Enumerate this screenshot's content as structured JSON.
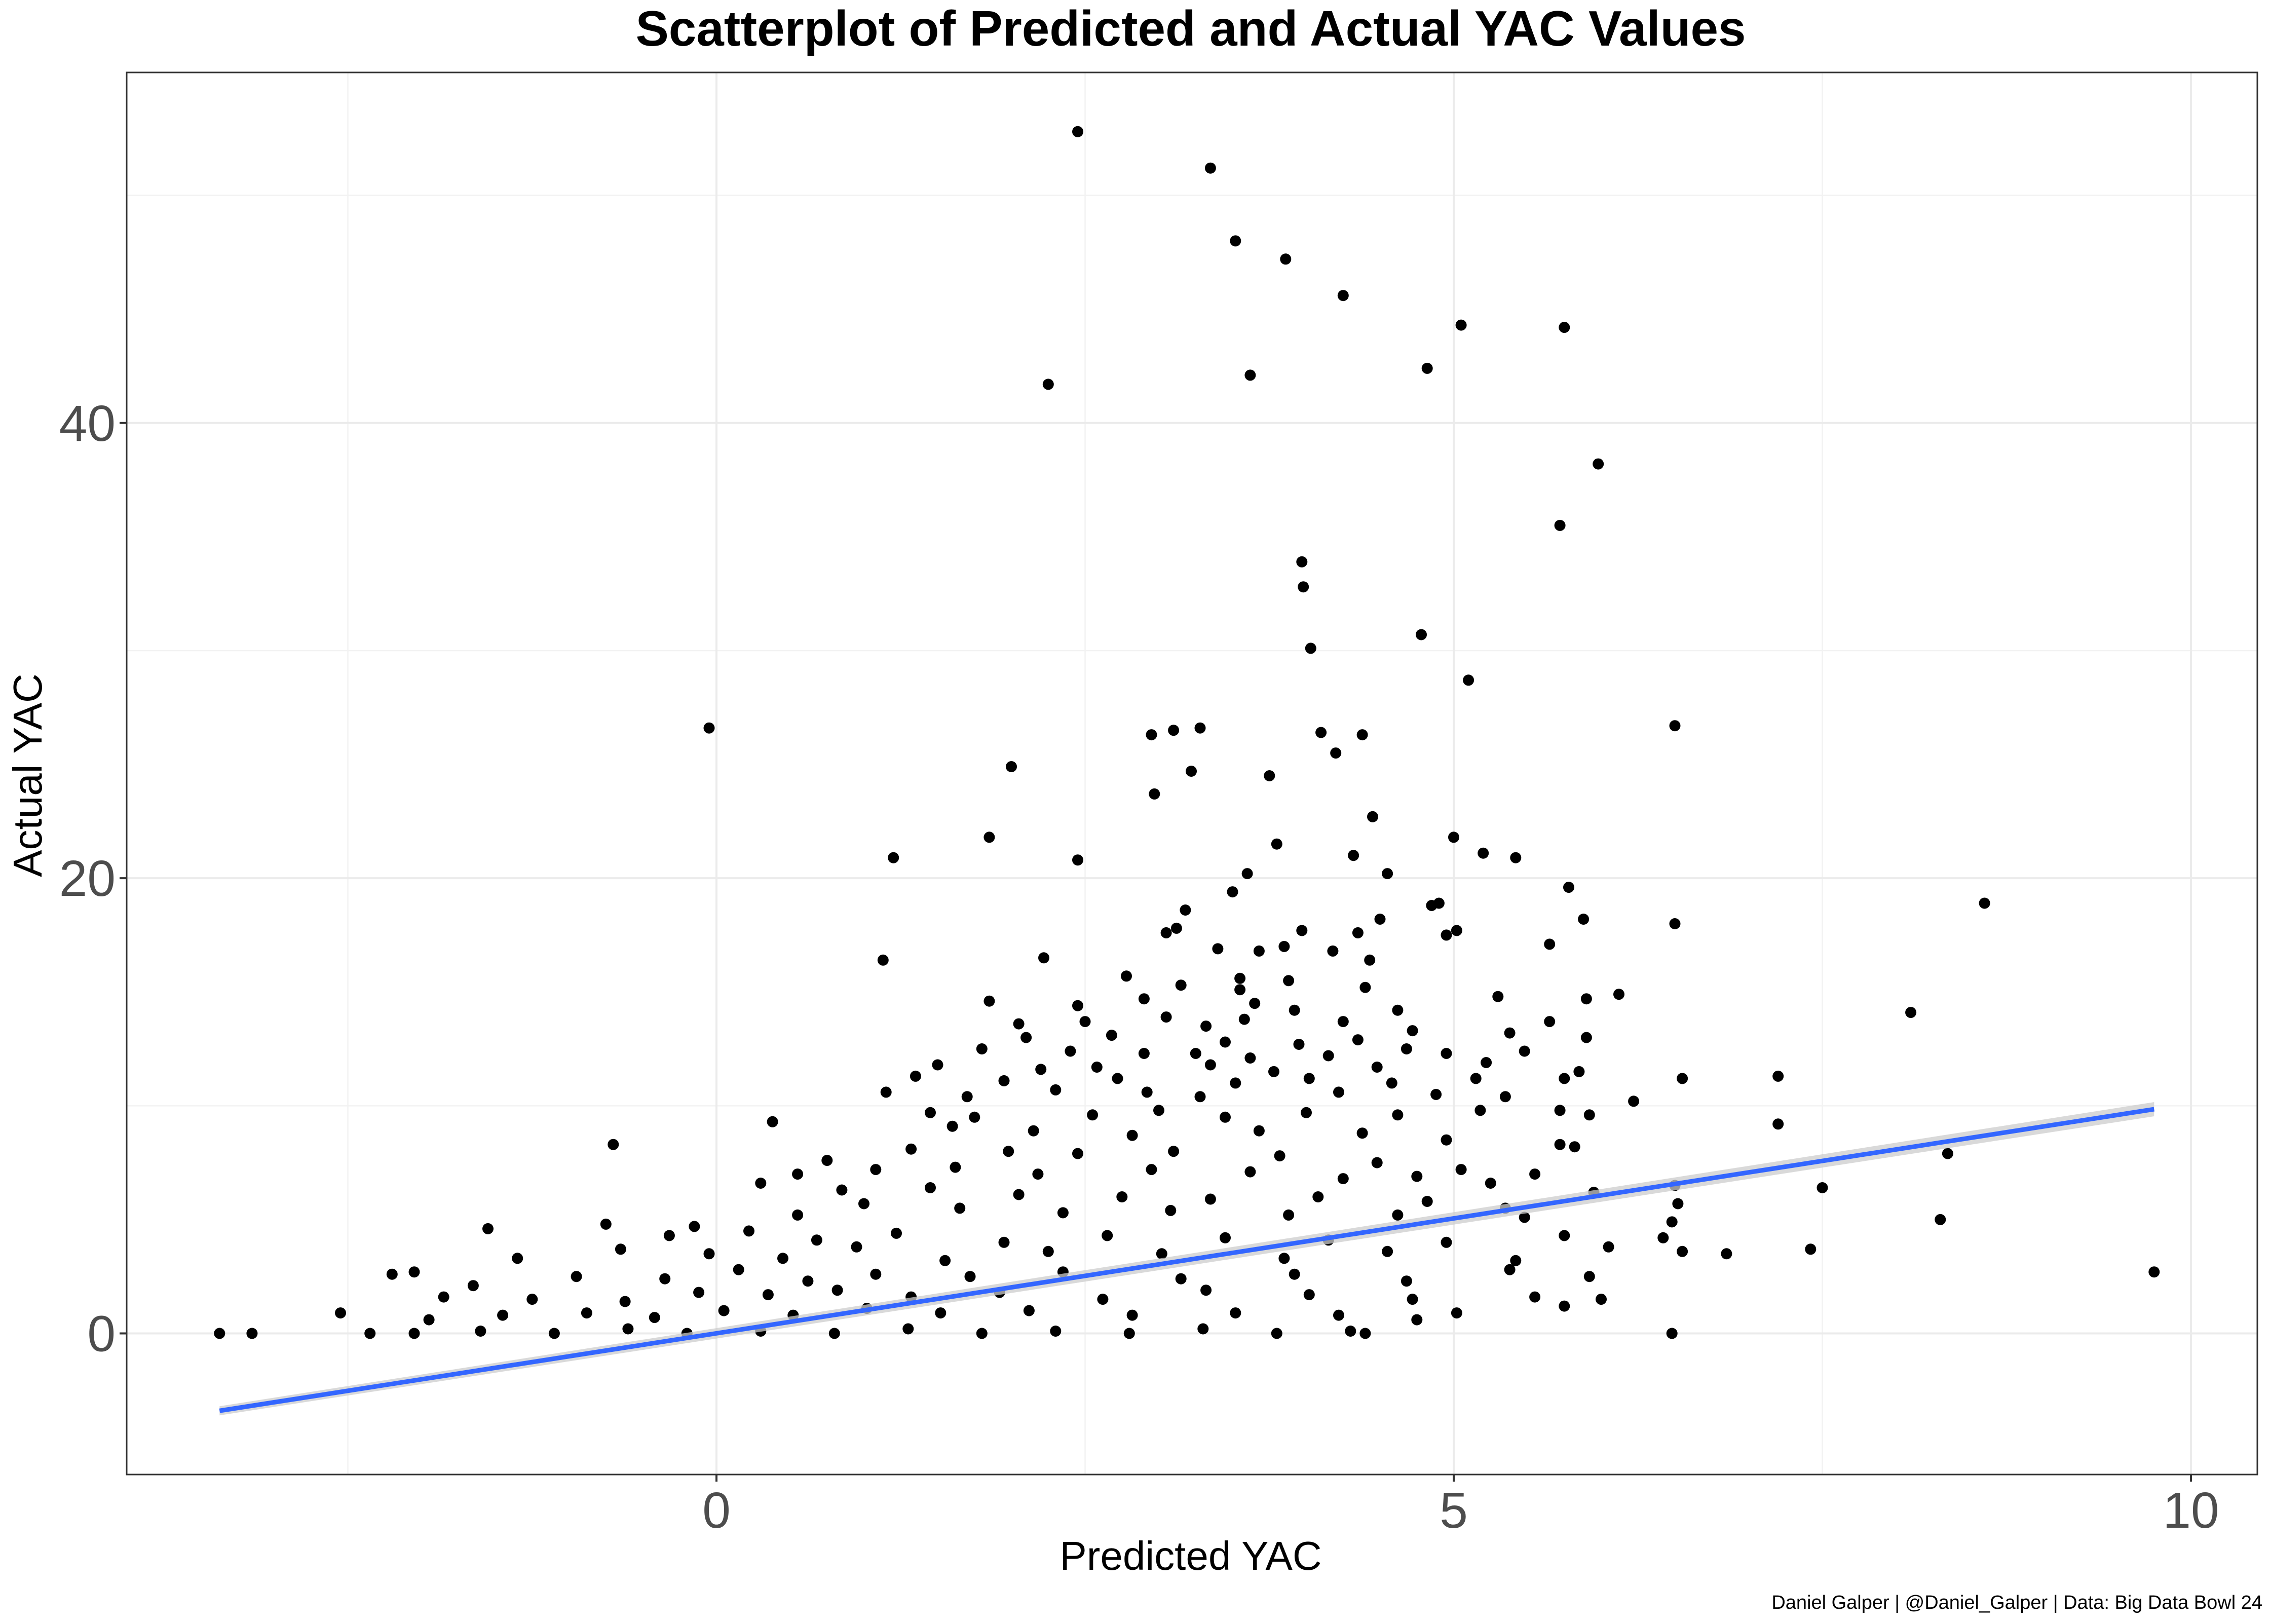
{
  "chart_data": {
    "type": "scatter",
    "title": "Scatterplot of Predicted and Actual YAC Values",
    "xlabel": "Predicted YAC",
    "ylabel": "Actual YAC",
    "caption": "Daniel Galper | @Daniel_Galper | Data: Big Data Bowl 24",
    "xlim": [
      -4.0,
      10.45
    ],
    "ylim": [
      -6.2,
      55.4
    ],
    "x_ticks": [
      0,
      5,
      10
    ],
    "x_tick_labels": [
      "0",
      "5",
      "10"
    ],
    "y_ticks": [
      0,
      20,
      40
    ],
    "y_tick_labels": [
      "0",
      "20",
      "40"
    ],
    "grid": true,
    "point_color": "#000000",
    "trend": {
      "type": "linear",
      "color": "#3366FF",
      "ribbon_color": "#cccccc",
      "x": [
        -3.37,
        9.75
      ],
      "y": [
        -3.4,
        9.85
      ]
    },
    "points": [
      [
        2.45,
        52.8
      ],
      [
        3.35,
        51.2
      ],
      [
        3.52,
        48.0
      ],
      [
        3.86,
        47.2
      ],
      [
        4.25,
        45.6
      ],
      [
        5.05,
        44.3
      ],
      [
        5.75,
        44.2
      ],
      [
        2.25,
        41.7
      ],
      [
        3.62,
        42.1
      ],
      [
        4.82,
        42.4
      ],
      [
        5.98,
        38.2
      ],
      [
        5.72,
        35.5
      ],
      [
        3.97,
        33.9
      ],
      [
        3.98,
        32.8
      ],
      [
        4.03,
        30.1
      ],
      [
        4.78,
        30.7
      ],
      [
        5.1,
        28.7
      ],
      [
        -0.05,
        26.6
      ],
      [
        6.5,
        26.7
      ],
      [
        2.95,
        26.3
      ],
      [
        3.1,
        26.5
      ],
      [
        3.28,
        26.6
      ],
      [
        4.1,
        26.4
      ],
      [
        4.38,
        26.3
      ],
      [
        2.0,
        24.9
      ],
      [
        3.22,
        24.7
      ],
      [
        3.75,
        24.5
      ],
      [
        4.2,
        25.5
      ],
      [
        2.97,
        23.7
      ],
      [
        4.45,
        22.7
      ],
      [
        1.85,
        21.8
      ],
      [
        3.8,
        21.5
      ],
      [
        5.0,
        21.8
      ],
      [
        1.2,
        20.9
      ],
      [
        2.45,
        20.8
      ],
      [
        4.32,
        21.0
      ],
      [
        5.2,
        21.1
      ],
      [
        5.42,
        20.9
      ],
      [
        3.6,
        20.2
      ],
      [
        4.55,
        20.2
      ],
      [
        3.5,
        19.4
      ],
      [
        5.78,
        19.6
      ],
      [
        8.6,
        18.9
      ],
      [
        3.18,
        18.6
      ],
      [
        4.85,
        18.8
      ],
      [
        4.9,
        18.9
      ],
      [
        5.88,
        18.2
      ],
      [
        4.5,
        18.2
      ],
      [
        6.5,
        18.0
      ],
      [
        3.05,
        17.6
      ],
      [
        3.12,
        17.8
      ],
      [
        3.97,
        17.7
      ],
      [
        4.35,
        17.6
      ],
      [
        4.95,
        17.5
      ],
      [
        5.02,
        17.7
      ],
      [
        5.65,
        17.1
      ],
      [
        1.13,
        16.4
      ],
      [
        2.22,
        16.5
      ],
      [
        3.4,
        16.9
      ],
      [
        3.68,
        16.8
      ],
      [
        3.85,
        17.0
      ],
      [
        4.18,
        16.8
      ],
      [
        4.43,
        16.4
      ],
      [
        2.78,
        15.7
      ],
      [
        3.55,
        15.6
      ],
      [
        3.88,
        15.5
      ],
      [
        3.15,
        15.3
      ],
      [
        3.55,
        15.1
      ],
      [
        4.4,
        15.2
      ],
      [
        5.3,
        14.8
      ],
      [
        5.9,
        14.7
      ],
      [
        6.12,
        14.9
      ],
      [
        8.1,
        14.1
      ],
      [
        1.85,
        14.6
      ],
      [
        2.45,
        14.4
      ],
      [
        2.9,
        14.7
      ],
      [
        3.65,
        14.5
      ],
      [
        3.92,
        14.2
      ],
      [
        4.62,
        14.2
      ],
      [
        2.05,
        13.6
      ],
      [
        2.5,
        13.7
      ],
      [
        3.05,
        13.9
      ],
      [
        3.32,
        13.5
      ],
      [
        3.58,
        13.8
      ],
      [
        4.25,
        13.7
      ],
      [
        4.72,
        13.3
      ],
      [
        5.65,
        13.7
      ],
      [
        5.38,
        13.2
      ],
      [
        2.1,
        13.0
      ],
      [
        2.68,
        13.1
      ],
      [
        3.45,
        12.8
      ],
      [
        3.95,
        12.7
      ],
      [
        4.35,
        12.9
      ],
      [
        4.68,
        12.5
      ],
      [
        5.9,
        13.0
      ],
      [
        1.8,
        12.5
      ],
      [
        2.4,
        12.4
      ],
      [
        2.9,
        12.3
      ],
      [
        3.25,
        12.3
      ],
      [
        3.62,
        12.1
      ],
      [
        4.15,
        12.2
      ],
      [
        4.95,
        12.3
      ],
      [
        5.48,
        12.4
      ],
      [
        1.5,
        11.8
      ],
      [
        2.2,
        11.6
      ],
      [
        2.58,
        11.7
      ],
      [
        3.35,
        11.8
      ],
      [
        3.78,
        11.5
      ],
      [
        4.48,
        11.7
      ],
      [
        5.22,
        11.9
      ],
      [
        5.85,
        11.5
      ],
      [
        1.35,
        11.3
      ],
      [
        1.95,
        11.1
      ],
      [
        2.72,
        11.2
      ],
      [
        3.52,
        11.0
      ],
      [
        4.02,
        11.2
      ],
      [
        4.58,
        11.0
      ],
      [
        5.15,
        11.2
      ],
      [
        5.75,
        11.2
      ],
      [
        6.55,
        11.2
      ],
      [
        7.2,
        11.3
      ],
      [
        1.15,
        10.6
      ],
      [
        1.7,
        10.4
      ],
      [
        2.3,
        10.7
      ],
      [
        2.92,
        10.6
      ],
      [
        3.28,
        10.4
      ],
      [
        4.22,
        10.6
      ],
      [
        4.88,
        10.5
      ],
      [
        5.35,
        10.4
      ],
      [
        6.22,
        10.2
      ],
      [
        0.38,
        9.3
      ],
      [
        1.45,
        9.7
      ],
      [
        1.75,
        9.5
      ],
      [
        2.55,
        9.6
      ],
      [
        3.0,
        9.8
      ],
      [
        3.45,
        9.5
      ],
      [
        4.0,
        9.7
      ],
      [
        4.62,
        9.6
      ],
      [
        5.18,
        9.8
      ],
      [
        5.72,
        9.8
      ],
      [
        5.92,
        9.6
      ],
      [
        7.2,
        9.2
      ],
      [
        -0.7,
        8.3
      ],
      [
        1.6,
        9.1
      ],
      [
        2.15,
        8.9
      ],
      [
        2.82,
        8.7
      ],
      [
        3.68,
        8.9
      ],
      [
        4.38,
        8.8
      ],
      [
        4.95,
        8.5
      ],
      [
        5.72,
        8.3
      ],
      [
        0.75,
        7.6
      ],
      [
        1.32,
        8.1
      ],
      [
        1.98,
        8.0
      ],
      [
        2.45,
        7.9
      ],
      [
        3.1,
        8.0
      ],
      [
        3.82,
        7.8
      ],
      [
        4.48,
        7.5
      ],
      [
        5.05,
        7.2
      ],
      [
        5.55,
        7.0
      ],
      [
        5.82,
        8.2
      ],
      [
        8.35,
        7.9
      ],
      [
        0.55,
        7.0
      ],
      [
        1.08,
        7.2
      ],
      [
        1.62,
        7.3
      ],
      [
        2.18,
        7.0
      ],
      [
        2.95,
        7.2
      ],
      [
        3.62,
        7.1
      ],
      [
        4.25,
        6.8
      ],
      [
        4.75,
        6.9
      ],
      [
        5.25,
        6.6
      ],
      [
        5.95,
        6.2
      ],
      [
        6.5,
        6.5
      ],
      [
        7.5,
        6.4
      ],
      [
        0.3,
        6.6
      ],
      [
        0.85,
        6.3
      ],
      [
        1.45,
        6.4
      ],
      [
        2.05,
        6.1
      ],
      [
        2.75,
        6.0
      ],
      [
        3.35,
        5.9
      ],
      [
        4.08,
        6.0
      ],
      [
        4.82,
        5.8
      ],
      [
        5.35,
        5.5
      ],
      [
        6.52,
        5.7
      ],
      [
        -1.55,
        4.6
      ],
      [
        -0.75,
        4.8
      ],
      [
        -0.15,
        4.7
      ],
      [
        0.55,
        5.2
      ],
      [
        1.0,
        5.7
      ],
      [
        1.65,
        5.5
      ],
      [
        2.35,
        5.3
      ],
      [
        3.08,
        5.4
      ],
      [
        3.88,
        5.2
      ],
      [
        4.62,
        5.2
      ],
      [
        5.48,
        5.1
      ],
      [
        6.48,
        4.9
      ],
      [
        8.3,
        5.0
      ],
      [
        -0.32,
        4.3
      ],
      [
        0.22,
        4.5
      ],
      [
        0.68,
        4.1
      ],
      [
        1.22,
        4.4
      ],
      [
        1.95,
        4.0
      ],
      [
        2.65,
        4.3
      ],
      [
        3.45,
        4.2
      ],
      [
        4.15,
        4.1
      ],
      [
        4.95,
        4.0
      ],
      [
        5.75,
        4.3
      ],
      [
        6.42,
        4.2
      ],
      [
        -1.35,
        3.3
      ],
      [
        -0.65,
        3.7
      ],
      [
        -0.05,
        3.5
      ],
      [
        0.45,
        3.3
      ],
      [
        0.95,
        3.8
      ],
      [
        1.55,
        3.2
      ],
      [
        2.25,
        3.6
      ],
      [
        3.02,
        3.5
      ],
      [
        3.85,
        3.3
      ],
      [
        4.55,
        3.6
      ],
      [
        5.42,
        3.2
      ],
      [
        6.05,
        3.8
      ],
      [
        6.55,
        3.6
      ],
      [
        6.85,
        3.5
      ],
      [
        7.42,
        3.7
      ],
      [
        -2.2,
        2.6
      ],
      [
        -2.05,
        2.7
      ],
      [
        -1.65,
        2.1
      ],
      [
        -0.95,
        2.5
      ],
      [
        -0.35,
        2.4
      ],
      [
        0.15,
        2.8
      ],
      [
        0.62,
        2.3
      ],
      [
        1.08,
        2.6
      ],
      [
        1.72,
        2.5
      ],
      [
        2.35,
        2.7
      ],
      [
        3.15,
        2.4
      ],
      [
        3.92,
        2.6
      ],
      [
        4.68,
        2.3
      ],
      [
        5.38,
        2.8
      ],
      [
        5.92,
        2.5
      ],
      [
        -1.85,
        1.6
      ],
      [
        -1.25,
        1.5
      ],
      [
        -0.62,
        1.4
      ],
      [
        -0.12,
        1.8
      ],
      [
        0.35,
        1.7
      ],
      [
        0.82,
        1.9
      ],
      [
        1.32,
        1.6
      ],
      [
        1.92,
        1.8
      ],
      [
        2.62,
        1.5
      ],
      [
        3.32,
        1.9
      ],
      [
        4.02,
        1.7
      ],
      [
        4.72,
        1.5
      ],
      [
        5.55,
        1.6
      ],
      [
        5.75,
        1.2
      ],
      [
        6.0,
        1.5
      ],
      [
        9.75,
        2.7
      ],
      [
        -2.55,
        0.9
      ],
      [
        -1.95,
        0.6
      ],
      [
        -1.45,
        0.8
      ],
      [
        -0.88,
        0.9
      ],
      [
        -0.42,
        0.7
      ],
      [
        0.05,
        1.0
      ],
      [
        0.52,
        0.8
      ],
      [
        1.02,
        1.1
      ],
      [
        1.52,
        0.9
      ],
      [
        2.12,
        1.0
      ],
      [
        2.82,
        0.8
      ],
      [
        3.52,
        0.9
      ],
      [
        4.22,
        0.8
      ],
      [
        4.75,
        0.6
      ],
      [
        5.02,
        0.9
      ],
      [
        -3.37,
        0.0
      ],
      [
        -3.15,
        0.0
      ],
      [
        -2.35,
        0.0
      ],
      [
        -2.05,
        0.0
      ],
      [
        -1.6,
        0.1
      ],
      [
        -1.1,
        0.0
      ],
      [
        -0.6,
        0.2
      ],
      [
        -0.2,
        0.0
      ],
      [
        0.3,
        0.1
      ],
      [
        0.8,
        0.0
      ],
      [
        1.3,
        0.2
      ],
      [
        1.8,
        0.0
      ],
      [
        2.3,
        0.1
      ],
      [
        2.8,
        0.0
      ],
      [
        3.3,
        0.2
      ],
      [
        3.8,
        0.0
      ],
      [
        4.3,
        0.1
      ],
      [
        4.4,
        0.0
      ],
      [
        6.48,
        0.0
      ]
    ]
  }
}
